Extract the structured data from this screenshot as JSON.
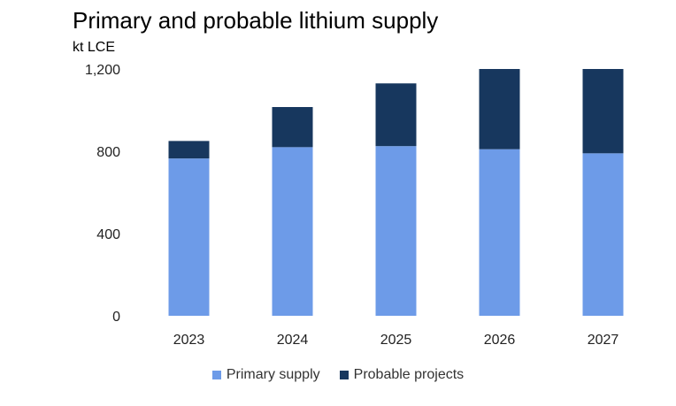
{
  "chart_data": {
    "type": "bar",
    "stacked": true,
    "title": "Primary and probable lithium supply",
    "ylabel": "kt LCE",
    "xlabel": "",
    "categories": [
      "2023",
      "2024",
      "2025",
      "2026",
      "2027"
    ],
    "series": [
      {
        "name": "Primary supply",
        "values": [
          765,
          820,
          825,
          810,
          790
        ],
        "color": "#6d9be8"
      },
      {
        "name": "Probable projects",
        "values": [
          85,
          195,
          305,
          390,
          410
        ],
        "color": "#17375e"
      }
    ],
    "ylim": [
      0,
      1200
    ],
    "yticks": [
      "0",
      "400",
      "800",
      "1,200"
    ],
    "grid": false,
    "legend_position": "bottom"
  }
}
